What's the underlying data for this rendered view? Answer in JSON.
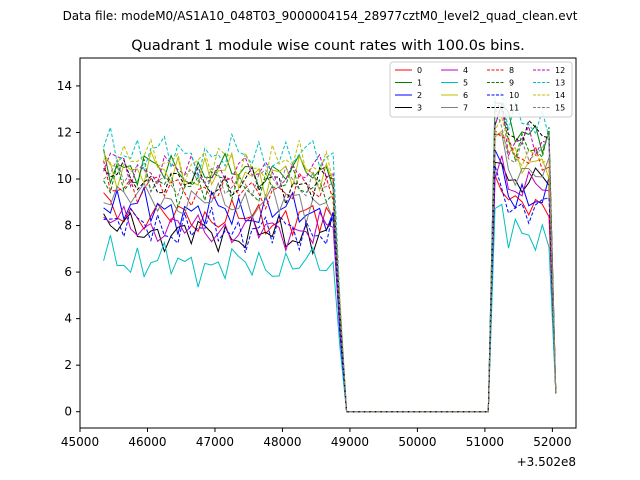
{
  "chart_data": {
    "type": "line",
    "suptitle": "Data file: modeM0/AS1A10_048T03_9000004154_28977cztM0_level2_quad_clean.evt",
    "title": "Quadrant 1 module wise count rates with 100.0s bins.",
    "xlabel": "",
    "ylabel": "",
    "x_offset_label": "+3.502e8",
    "xlim": [
      45000,
      52350
    ],
    "ylim": [
      -0.7,
      15.2
    ],
    "xticks": [
      45000,
      46000,
      47000,
      48000,
      49000,
      50000,
      51000,
      52000
    ],
    "yticks": [
      0,
      2,
      4,
      6,
      8,
      10,
      12,
      14
    ],
    "legend_position": "upper right",
    "series": [
      {
        "name": "0",
        "color": "#ff0000",
        "dash": "solid",
        "base1": 8.3,
        "base2": 8.8,
        "off": 0.3
      },
      {
        "name": "1",
        "color": "#008000",
        "dash": "solid",
        "base1": 10.3,
        "base2": 12.0,
        "off": 1.2
      },
      {
        "name": "2",
        "color": "#0000ff",
        "dash": "solid",
        "base1": 8.6,
        "base2": 9.3,
        "off": 2.1
      },
      {
        "name": "3",
        "color": "#000000",
        "dash": "solid",
        "base1": 7.6,
        "base2": 9.9,
        "off": 3.4
      },
      {
        "name": "4",
        "color": "#bf00bf",
        "dash": "solid",
        "base1": 7.8,
        "base2": 9.6,
        "off": 4.0
      },
      {
        "name": "5",
        "color": "#00bfbf",
        "dash": "solid",
        "base1": 6.3,
        "base2": 7.5,
        "off": 5.3
      },
      {
        "name": "6",
        "color": "#bfbf00",
        "dash": "solid",
        "base1": 10.2,
        "base2": 10.8,
        "off": 6.1
      },
      {
        "name": "7",
        "color": "#808080",
        "dash": "solid",
        "base1": 9.0,
        "base2": 10.4,
        "off": 7.2
      },
      {
        "name": "8",
        "color": "#ff0000",
        "dash": "dashed",
        "base1": 9.5,
        "base2": 10.9,
        "off": 0.8
      },
      {
        "name": "9",
        "color": "#008000",
        "dash": "dashed",
        "base1": 9.7,
        "base2": 11.5,
        "off": 1.9
      },
      {
        "name": "10",
        "color": "#0000ff",
        "dash": "dashed",
        "base1": 7.8,
        "base2": 8.8,
        "off": 2.7
      },
      {
        "name": "11",
        "color": "#000000",
        "dash": "dashed",
        "base1": 9.8,
        "base2": 11.9,
        "off": 3.9
      },
      {
        "name": "12",
        "color": "#bf00bf",
        "dash": "dashed",
        "base1": 10.3,
        "base2": 11.5,
        "off": 4.6
      },
      {
        "name": "13",
        "color": "#00bfbf",
        "dash": "dashed",
        "base1": 11.0,
        "base2": 12.4,
        "off": 5.5
      },
      {
        "name": "14",
        "color": "#bfbf00",
        "dash": "dashed",
        "base1": 10.7,
        "base2": 11.1,
        "off": 6.6
      },
      {
        "name": "15",
        "color": "#808080",
        "dash": "dashed",
        "base1": 9.9,
        "base2": 11.2,
        "off": 7.7
      }
    ]
  }
}
